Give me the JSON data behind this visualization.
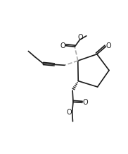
{
  "bg_color": "#ffffff",
  "line_color": "#1a1a1a",
  "lw": 1.2,
  "dash_color": "#aaaaaa",
  "figsize": [
    1.82,
    2.18
  ],
  "dpi": 100,
  "xlim": [
    0.0,
    10.0
  ],
  "ylim": [
    0.0,
    12.0
  ]
}
